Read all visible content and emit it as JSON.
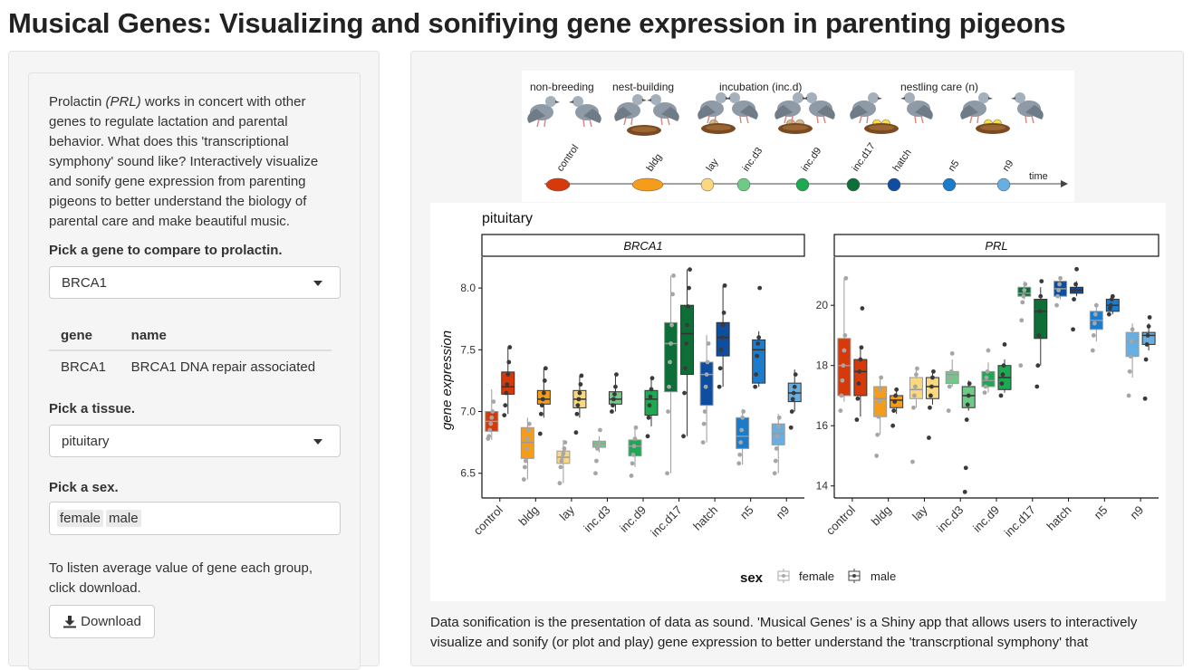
{
  "app": {
    "title": "Musical Genes: Visualizing and sonifiying gene expression in parenting pigeons"
  },
  "sidebar": {
    "intro_pre": "Prolactin ",
    "intro_em": "(PRL)",
    "intro_post": " works in concert with other genes to regulate lactation and parental behavior. What does this 'transcriptional symphony' sound like? Interactively visualize and sonify gene expression from parenting pigeons to better understand the biology of parental care and make beautiful music.",
    "gene_label": "Pick a gene to compare to prolactin.",
    "gene_value": "BRCA1",
    "table": {
      "headers": [
        "gene",
        "name"
      ],
      "rows": [
        [
          "BRCA1",
          "BRCA1 DNA repair associated"
        ]
      ]
    },
    "tissue_label": "Pick a tissue.",
    "tissue_value": "pituitary",
    "sex_label": "Pick a sex.",
    "sex_values": [
      "female",
      "male"
    ],
    "download_help": "To listen average value of gene each group, click download.",
    "download_label": "Download"
  },
  "stage_image": {
    "phases": [
      "non-breeding",
      "nest-building",
      "incubation (inc.d)",
      "nestling care (n)"
    ],
    "timepoints": [
      "control",
      "bldg",
      "lay",
      "inc.d3",
      "inc.d9",
      "inc.d17",
      "hatch",
      "n5",
      "n9"
    ],
    "time_label": "time"
  },
  "description": "Data sonification is the presentation of data as sound. 'Musical Genes' is a Shiny app that allows users to interactively visualize and sonify (or plot and play) gene expression to better understand the 'transcrptional symphony' that",
  "colors": {
    "control": "#d73a0a",
    "bldg": "#f59d1b",
    "lay": "#fbd87d",
    "inc.d3": "#6ecb86",
    "inc.d9": "#1ca951",
    "inc.d17": "#0d6e37",
    "hatch": "#0d4ea0",
    "n5": "#1c7ccc",
    "n9": "#67aee2"
  },
  "chart_data": {
    "type": "box",
    "title": "pituitary",
    "ylabel": "gene expression",
    "legend": {
      "title": "sex",
      "entries": [
        "female",
        "male"
      ],
      "placement": "bottom"
    },
    "categories": [
      "control",
      "bldg",
      "lay",
      "inc.d3",
      "inc.d9",
      "inc.d17",
      "hatch",
      "n5",
      "n9"
    ],
    "panels": [
      {
        "name": "BRCA1",
        "ylim": [
          6.3,
          8.25
        ],
        "yticks": [
          6.5,
          7.0,
          7.5,
          8.0
        ],
        "ytick_labels": [
          "6.5",
          "7.0",
          "7.5",
          "8.0"
        ],
        "series": [
          {
            "name": "female",
            "boxes": [
              {
                "min": 6.77,
                "q1": 6.84,
                "median": 6.92,
                "q3": 7.0,
                "max": 7.18,
                "points": [
                  6.78,
                  6.8,
                  6.85,
                  6.9,
                  6.95,
                  7.0,
                  7.08
                ]
              },
              {
                "min": 6.45,
                "q1": 6.62,
                "median": 6.75,
                "q3": 6.87,
                "max": 6.95,
                "points": [
                  6.45,
                  6.55,
                  6.6,
                  6.7,
                  6.78,
                  6.85,
                  6.9
                ]
              },
              {
                "min": 6.42,
                "q1": 6.58,
                "median": 6.63,
                "q3": 6.68,
                "max": 6.77,
                "points": [
                  6.42,
                  6.55,
                  6.6,
                  6.63,
                  6.66,
                  6.7,
                  6.75
                ]
              },
              {
                "min": 6.67,
                "q1": 6.71,
                "median": 6.74,
                "q3": 6.76,
                "max": 6.8,
                "points": [
                  6.5,
                  6.6,
                  6.7,
                  6.73,
                  6.75,
                  6.85
                ]
              },
              {
                "min": 6.55,
                "q1": 6.64,
                "median": 6.72,
                "q3": 6.77,
                "max": 6.88,
                "points": [
                  6.48,
                  6.58,
                  6.65,
                  6.72,
                  6.78,
                  6.87
                ]
              },
              {
                "min": 6.5,
                "q1": 7.16,
                "median": 7.55,
                "q3": 7.72,
                "max": 8.1,
                "points": [
                  6.5,
                  7.0,
                  7.2,
                  7.4,
                  7.55,
                  7.7,
                  7.95,
                  8.1
                ]
              },
              {
                "min": 6.75,
                "q1": 7.05,
                "median": 7.3,
                "q3": 7.4,
                "max": 7.62,
                "points": [
                  6.75,
                  6.9,
                  7.0,
                  7.2,
                  7.3,
                  7.4,
                  7.55
                ]
              },
              {
                "min": 6.57,
                "q1": 6.7,
                "median": 6.8,
                "q3": 6.95,
                "max": 7.02,
                "points": [
                  6.58,
                  6.65,
                  6.75,
                  6.85,
                  6.95,
                  7.0
                ]
              },
              {
                "min": 6.5,
                "q1": 6.73,
                "median": 6.82,
                "q3": 6.9,
                "max": 6.98,
                "points": [
                  6.5,
                  6.6,
                  6.7,
                  6.8,
                  6.88,
                  6.95
                ]
              }
            ]
          },
          {
            "name": "male",
            "boxes": [
              {
                "min": 6.98,
                "q1": 7.14,
                "median": 7.2,
                "q3": 7.32,
                "max": 7.52,
                "points": [
                  6.97,
                  7.05,
                  7.15,
                  7.22,
                  7.3,
                  7.4,
                  7.52
                ]
              },
              {
                "min": 6.95,
                "q1": 7.06,
                "median": 7.1,
                "q3": 7.17,
                "max": 7.35,
                "points": [
                  6.82,
                  6.98,
                  7.05,
                  7.1,
                  7.15,
                  7.25,
                  7.35
                ]
              },
              {
                "min": 6.95,
                "q1": 7.03,
                "median": 7.1,
                "q3": 7.17,
                "max": 7.29,
                "points": [
                  6.83,
                  6.98,
                  7.05,
                  7.1,
                  7.15,
                  7.22,
                  7.29
                ]
              },
              {
                "min": 7.0,
                "q1": 7.06,
                "median": 7.1,
                "q3": 7.16,
                "max": 7.3,
                "points": [
                  7.0,
                  7.05,
                  7.1,
                  7.14,
                  7.2,
                  7.3
                ]
              },
              {
                "min": 6.88,
                "q1": 6.97,
                "median": 7.1,
                "q3": 7.17,
                "max": 7.27,
                "points": [
                  6.8,
                  6.95,
                  7.05,
                  7.12,
                  7.18,
                  7.27
                ]
              },
              {
                "min": 6.8,
                "q1": 7.3,
                "median": 7.63,
                "q3": 7.86,
                "max": 8.15,
                "points": [
                  6.8,
                  7.15,
                  7.35,
                  7.55,
                  7.7,
                  7.85,
                  8.0,
                  8.15
                ]
              },
              {
                "min": 7.2,
                "q1": 7.45,
                "median": 7.6,
                "q3": 7.72,
                "max": 8.02,
                "points": [
                  7.2,
                  7.35,
                  7.5,
                  7.6,
                  7.7,
                  7.8,
                  8.02
                ]
              },
              {
                "min": 7.2,
                "q1": 7.23,
                "median": 7.5,
                "q3": 7.58,
                "max": 7.65,
                "points": [
                  7.2,
                  7.3,
                  7.45,
                  7.55,
                  7.6,
                  8.0
                ]
              },
              {
                "min": 7.0,
                "q1": 7.08,
                "median": 7.15,
                "q3": 7.23,
                "max": 7.34,
                "points": [
                  6.87,
                  7.0,
                  7.1,
                  7.15,
                  7.2,
                  7.3
                ]
              }
            ]
          }
        ]
      },
      {
        "name": "PRL",
        "ylim": [
          13.6,
          21.6
        ],
        "yticks": [
          14,
          16,
          18,
          20
        ],
        "ytick_labels": [
          "14",
          "16",
          "18",
          "20"
        ],
        "series": [
          {
            "name": "female",
            "boxes": [
              {
                "min": 16.8,
                "q1": 17.0,
                "median": 18.0,
                "q3": 18.9,
                "max": 20.9,
                "points": [
                  16.5,
                  17.0,
                  17.5,
                  18.0,
                  18.5,
                  19.0,
                  20.9
                ]
              },
              {
                "min": 15.7,
                "q1": 16.3,
                "median": 16.9,
                "q3": 17.3,
                "max": 17.6,
                "points": [
                  15.0,
                  15.7,
                  16.3,
                  16.8,
                  17.2,
                  17.6
                ]
              },
              {
                "min": 16.6,
                "q1": 16.9,
                "median": 17.2,
                "q3": 17.6,
                "max": 17.9,
                "points": [
                  14.8,
                  16.6,
                  17.0,
                  17.3,
                  17.7,
                  17.9
                ]
              },
              {
                "min": 17.3,
                "q1": 17.4,
                "median": 17.7,
                "q3": 17.8,
                "max": 18.2,
                "points": [
                  16.5,
                  17.3,
                  17.6,
                  17.8,
                  18.4
                ]
              },
              {
                "min": 17.1,
                "q1": 17.3,
                "median": 17.5,
                "q3": 17.8,
                "max": 18.1,
                "points": [
                  17.1,
                  17.3,
                  17.6,
                  17.8,
                  18.5
                ]
              },
              {
                "min": 20.2,
                "q1": 20.3,
                "median": 20.4,
                "q3": 20.6,
                "max": 20.8,
                "points": [
                  18.0,
                  19.5,
                  20.1,
                  20.3,
                  20.5,
                  20.7
                ]
              },
              {
                "min": 20.2,
                "q1": 20.3,
                "median": 20.55,
                "q3": 20.8,
                "max": 20.9,
                "points": [
                  20.0,
                  20.3,
                  20.5,
                  20.7,
                  20.9
                ]
              },
              {
                "min": 18.8,
                "q1": 19.2,
                "median": 19.5,
                "q3": 19.8,
                "max": 20.0,
                "points": [
                  18.5,
                  19.0,
                  19.4,
                  19.7,
                  20.0
                ]
              },
              {
                "min": 17.6,
                "q1": 18.3,
                "median": 18.8,
                "q3": 19.1,
                "max": 19.4,
                "points": [
                  17.0,
                  17.8,
                  18.3,
                  18.8,
                  19.2
                ]
              }
            ]
          },
          {
            "name": "male",
            "boxes": [
              {
                "min": 16.3,
                "q1": 17.0,
                "median": 17.8,
                "q3": 18.2,
                "max": 18.6,
                "points": [
                  16.2,
                  16.9,
                  17.4,
                  17.8,
                  18.2,
                  18.6,
                  19.9
                ]
              },
              {
                "min": 16.4,
                "q1": 16.6,
                "median": 16.85,
                "q3": 17.0,
                "max": 17.2,
                "points": [
                  16.0,
                  16.5,
                  16.8,
                  17.0,
                  17.2
                ]
              },
              {
                "min": 16.7,
                "q1": 16.9,
                "median": 17.3,
                "q3": 17.6,
                "max": 17.8,
                "points": [
                  15.6,
                  16.6,
                  17.0,
                  17.3,
                  17.6,
                  17.8
                ]
              },
              {
                "min": 16.5,
                "q1": 16.6,
                "median": 17.0,
                "q3": 17.3,
                "max": 17.5,
                "points": [
                  13.8,
                  14.6,
                  16.2,
                  16.7,
                  17.0,
                  17.4
                ]
              },
              {
                "min": 17.1,
                "q1": 17.2,
                "median": 17.6,
                "q3": 18.0,
                "max": 18.2,
                "points": [
                  17.0,
                  17.4,
                  17.7,
                  18.0,
                  18.7
                ]
              },
              {
                "min": 18.0,
                "q1": 18.9,
                "median": 19.8,
                "q3": 20.2,
                "max": 20.6,
                "points": [
                  17.3,
                  18.0,
                  19.0,
                  19.8,
                  20.3,
                  20.8
                ]
              },
              {
                "min": 20.3,
                "q1": 20.4,
                "median": 20.5,
                "q3": 20.6,
                "max": 20.8,
                "points": [
                  19.2,
                  20.2,
                  20.5,
                  20.7,
                  21.2
                ]
              },
              {
                "min": 19.7,
                "q1": 19.8,
                "median": 20.0,
                "q3": 20.2,
                "max": 20.3,
                "points": [
                  19.7,
                  19.9,
                  20.0,
                  20.2,
                  20.3
                ]
              },
              {
                "min": 18.5,
                "q1": 18.7,
                "median": 19.0,
                "q3": 19.1,
                "max": 19.4,
                "points": [
                  16.9,
                  18.2,
                  18.7,
                  19.0,
                  19.3,
                  19.6
                ]
              }
            ]
          }
        ]
      }
    ]
  }
}
